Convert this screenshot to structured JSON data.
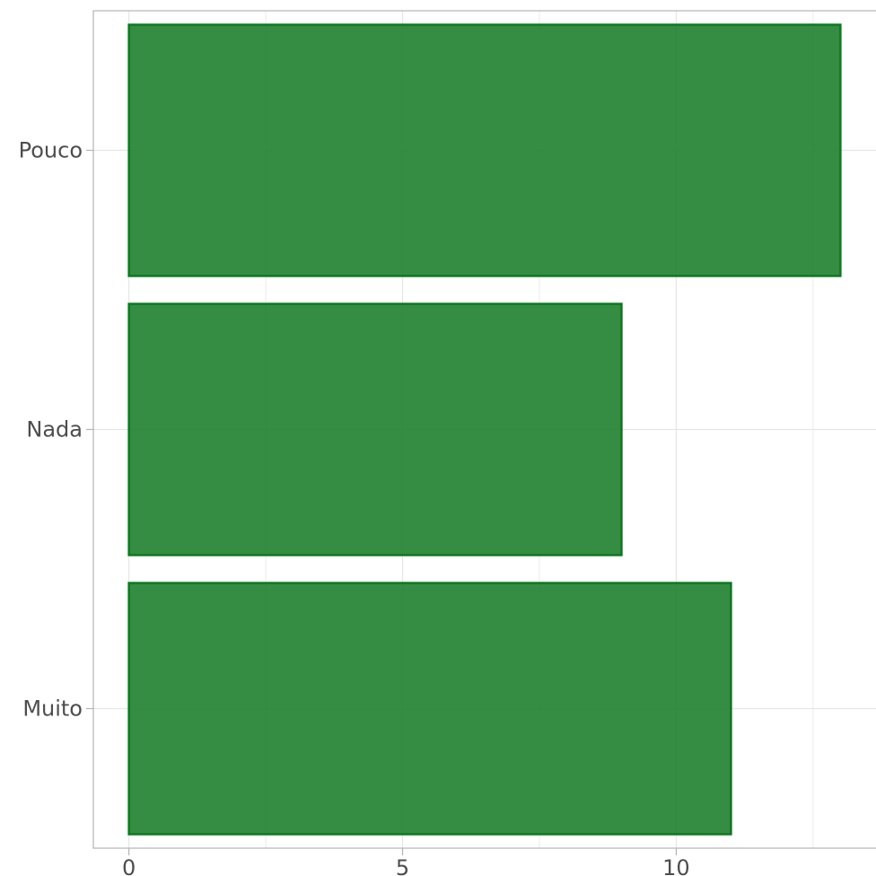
{
  "chart_data": {
    "type": "bar",
    "orientation": "horizontal",
    "categories": [
      "Pouco",
      "Nada",
      "Muito"
    ],
    "values": [
      13,
      9,
      11
    ],
    "xlim": [
      -0.65,
      13.65
    ],
    "xticks": [
      0,
      5,
      10
    ],
    "xtick_labels": [
      "0",
      "5",
      "10"
    ],
    "title": "",
    "xlabel": "",
    "ylabel": "",
    "grid": true,
    "legend": "none",
    "colors": {
      "bar_fill": "#1f7f2f",
      "bar_stroke": "#0b7a1e",
      "grid": "#e5e5e5",
      "panel_border": "#b3b3b3",
      "tick_text": "#4d4d4d"
    }
  }
}
